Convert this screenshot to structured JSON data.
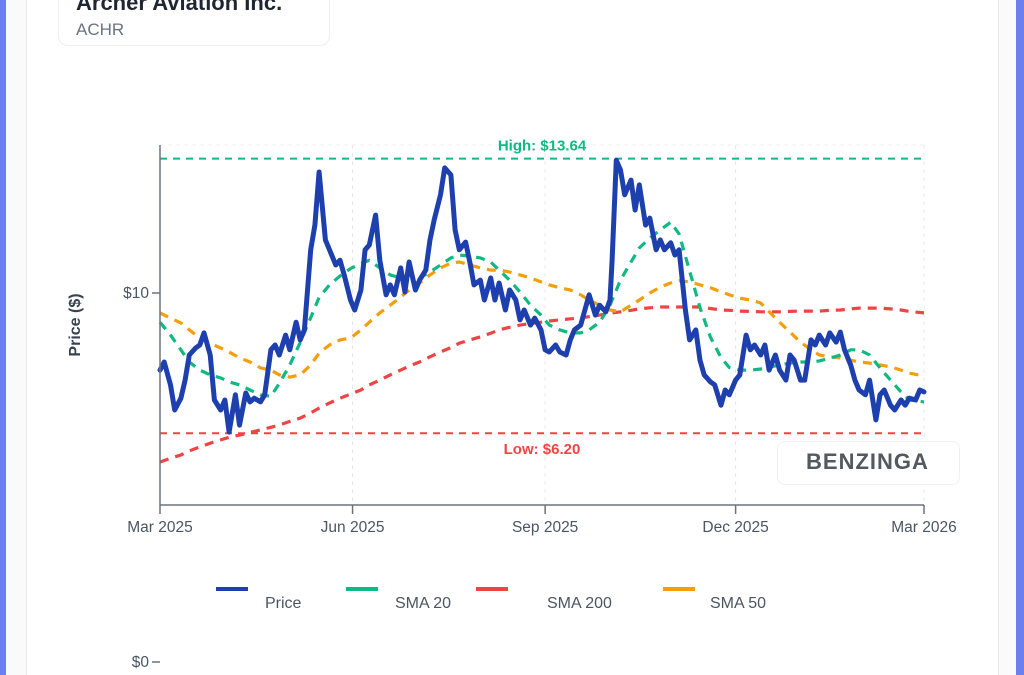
{
  "header": {
    "company_name": "Archer Aviation Inc.",
    "ticker": "ACHR"
  },
  "watermark": "BENZINGA",
  "colors": {
    "price": "#1e40af",
    "sma20": "#10b981",
    "sma200": "#ef4444",
    "sma50": "#f59e0b",
    "frame_accent": "#6b7ff0"
  },
  "chart_data": {
    "type": "line",
    "title": "",
    "xlabel": "",
    "ylabel": "Price ($)",
    "x_range": [
      "2025-03-01",
      "2026-03-01"
    ],
    "ylim": [
      0,
      14.6
    ],
    "x_ticks": [
      {
        "date": "2025-03-01",
        "label": "Mar 2025"
      },
      {
        "date": "2025-06-01",
        "label": "Jun 2025"
      },
      {
        "date": "2025-09-01",
        "label": "Sep 2025"
      },
      {
        "date": "2025-12-01",
        "label": "Dec 2025"
      },
      {
        "date": "2026-03-01",
        "label": "Mar 2026"
      }
    ],
    "y_ticks": [
      {
        "value": 10,
        "label": "$10"
      },
      {
        "value": 0,
        "label": "$0"
      }
    ],
    "grid": "vertical dashed at x ticks",
    "legend_position": "bottom",
    "reference_lines": [
      {
        "name": "high",
        "value": 13.64,
        "label": "High: $13.64",
        "color": "#10b981"
      },
      {
        "name": "low",
        "value": 6.2,
        "label": "Low: $6.20",
        "color": "#ef4444"
      }
    ],
    "legend": [
      "Price",
      "SMA 20",
      "SMA 200",
      "SMA 50"
    ],
    "series": [
      {
        "name": "Price",
        "key": "price",
        "style": "solid",
        "dates": [
          "2025-03-01",
          "2025-03-03",
          "2025-03-06",
          "2025-03-08",
          "2025-03-11",
          "2025-03-13",
          "2025-03-15",
          "2025-03-18",
          "2025-03-20",
          "2025-03-22",
          "2025-03-25",
          "2025-03-27",
          "2025-03-30",
          "2025-04-01",
          "2025-04-03",
          "2025-04-06",
          "2025-04-08",
          "2025-04-11",
          "2025-04-13",
          "2025-04-15",
          "2025-04-18",
          "2025-04-20",
          "2025-04-23",
          "2025-04-25",
          "2025-04-27",
          "2025-04-30",
          "2025-05-02",
          "2025-05-05",
          "2025-05-07",
          "2025-05-09",
          "2025-05-12",
          "2025-05-14",
          "2025-05-16",
          "2025-05-19",
          "2025-05-21",
          "2025-05-24",
          "2025-05-26",
          "2025-05-28",
          "2025-05-31",
          "2025-06-02",
          "2025-06-05",
          "2025-06-07",
          "2025-06-09",
          "2025-06-12",
          "2025-06-14",
          "2025-06-17",
          "2025-06-19",
          "2025-06-21",
          "2025-06-24",
          "2025-06-26",
          "2025-06-28",
          "2025-07-01",
          "2025-07-03",
          "2025-07-06",
          "2025-07-08",
          "2025-07-10",
          "2025-07-13",
          "2025-07-15",
          "2025-07-18",
          "2025-07-20",
          "2025-07-22",
          "2025-07-25",
          "2025-07-27",
          "2025-07-29",
          "2025-08-01",
          "2025-08-03",
          "2025-08-06",
          "2025-08-08",
          "2025-08-10",
          "2025-08-13",
          "2025-08-15",
          "2025-08-18",
          "2025-08-20",
          "2025-08-22",
          "2025-08-25",
          "2025-08-27",
          "2025-08-30",
          "2025-09-01",
          "2025-09-03",
          "2025-09-06",
          "2025-09-08",
          "2025-09-11",
          "2025-09-13",
          "2025-09-15",
          "2025-09-18",
          "2025-09-20",
          "2025-09-22",
          "2025-09-25",
          "2025-09-27",
          "2025-09-30",
          "2025-10-02",
          "2025-10-03",
          "2025-10-05",
          "2025-10-07",
          "2025-10-09",
          "2025-10-12",
          "2025-10-14",
          "2025-10-16",
          "2025-10-19",
          "2025-10-21",
          "2025-10-24",
          "2025-10-26",
          "2025-10-28",
          "2025-10-31",
          "2025-11-02",
          "2025-11-04",
          "2025-11-07",
          "2025-11-09",
          "2025-11-12",
          "2025-11-14",
          "2025-11-16",
          "2025-11-19",
          "2025-11-21",
          "2025-11-24",
          "2025-11-26",
          "2025-11-28",
          "2025-12-01",
          "2025-12-03",
          "2025-12-06",
          "2025-12-08",
          "2025-12-10",
          "2025-12-13",
          "2025-12-15",
          "2025-12-17",
          "2025-12-20",
          "2025-12-22",
          "2025-12-25",
          "2025-12-27",
          "2025-12-29",
          "2026-01-01",
          "2026-01-03",
          "2026-01-06",
          "2026-01-08",
          "2026-01-10",
          "2026-01-13",
          "2026-01-15",
          "2026-01-18",
          "2026-01-20",
          "2026-01-22",
          "2026-01-25",
          "2026-01-27",
          "2026-01-29",
          "2026-02-01",
          "2026-02-03",
          "2026-02-06",
          "2026-02-08",
          "2026-02-10",
          "2026-02-13",
          "2026-02-15",
          "2026-02-18",
          "2026-02-20",
          "2026-02-22",
          "2026-02-25",
          "2026-02-27",
          "2026-03-01"
        ],
        "values": [
          7.91,
          8.13,
          7.51,
          6.83,
          7.15,
          7.64,
          8.32,
          8.51,
          8.59,
          8.92,
          8.32,
          7.1,
          6.83,
          7.1,
          6.23,
          7.24,
          6.42,
          7.29,
          7.05,
          7.15,
          7.05,
          7.24,
          8.46,
          8.59,
          8.32,
          8.86,
          8.46,
          9.21,
          8.73,
          9.0,
          11.17,
          11.84,
          13.28,
          11.44,
          11.17,
          10.76,
          10.89,
          10.49,
          9.81,
          9.54,
          10.08,
          11.17,
          11.3,
          12.11,
          10.89,
          9.95,
          10.22,
          9.95,
          10.68,
          10.03,
          10.84,
          10.08,
          10.35,
          10.62,
          11.44,
          11.98,
          12.66,
          13.39,
          13.2,
          11.71,
          11.17,
          11.38,
          10.84,
          10.22,
          10.35,
          9.81,
          10.41,
          9.81,
          10.27,
          9.54,
          10.08,
          9.81,
          9.27,
          9.54,
          9.13,
          9.32,
          9.0,
          8.46,
          8.4,
          8.59,
          8.4,
          8.32,
          8.73,
          9.0,
          9.13,
          9.54,
          9.95,
          9.4,
          9.67,
          9.49,
          9.81,
          10.89,
          13.6,
          13.33,
          12.66,
          13.06,
          12.25,
          12.93,
          11.84,
          12.03,
          11.17,
          11.44,
          11.17,
          11.36,
          11.03,
          11.17,
          9.54,
          8.73,
          9.0,
          8.18,
          7.78,
          7.59,
          7.51,
          6.96,
          7.37,
          7.24,
          7.64,
          7.78,
          8.86,
          8.46,
          8.59,
          8.32,
          8.59,
          7.91,
          8.32,
          7.91,
          7.64,
          8.32,
          8.18,
          7.64,
          7.64,
          8.73,
          8.59,
          8.86,
          8.59,
          8.92,
          8.67,
          8.94,
          8.46,
          8.05,
          7.64,
          7.37,
          7.24,
          7.64,
          6.56,
          7.24,
          7.37,
          6.96,
          6.83,
          7.1,
          6.96,
          7.15,
          7.1,
          7.37,
          7.32
        ]
      },
      {
        "name": "SMA 20",
        "key": "sma20",
        "style": "dashed",
        "dates": [
          "2025-03-01",
          "2025-03-06",
          "2025-03-11",
          "2025-03-15",
          "2025-03-20",
          "2025-03-25",
          "2025-03-30",
          "2025-04-03",
          "2025-04-08",
          "2025-04-13",
          "2025-04-18",
          "2025-04-23",
          "2025-04-27",
          "2025-05-02",
          "2025-05-07",
          "2025-05-12",
          "2025-05-16",
          "2025-05-21",
          "2025-05-26",
          "2025-05-31",
          "2025-06-05",
          "2025-06-09",
          "2025-06-14",
          "2025-06-19",
          "2025-06-24",
          "2025-06-28",
          "2025-07-03",
          "2025-07-08",
          "2025-07-13",
          "2025-07-18",
          "2025-07-22",
          "2025-07-27",
          "2025-08-01",
          "2025-08-06",
          "2025-08-10",
          "2025-08-15",
          "2025-08-20",
          "2025-08-25",
          "2025-08-30",
          "2025-09-03",
          "2025-09-08",
          "2025-09-13",
          "2025-09-18",
          "2025-09-22",
          "2025-09-27",
          "2025-10-02",
          "2025-10-07",
          "2025-10-12",
          "2025-10-16",
          "2025-10-21",
          "2025-10-26",
          "2025-10-31",
          "2025-11-04",
          "2025-11-09",
          "2025-11-14",
          "2025-11-19",
          "2025-11-24",
          "2025-11-28",
          "2025-12-03",
          "2025-12-08",
          "2025-12-13",
          "2025-12-17",
          "2025-12-22",
          "2025-12-27",
          "2026-01-01",
          "2026-01-06",
          "2026-01-10",
          "2026-01-15",
          "2026-01-20",
          "2026-01-25",
          "2026-01-29",
          "2026-02-03",
          "2026-02-08",
          "2026-02-13",
          "2026-02-18",
          "2026-02-22",
          "2026-03-01"
        ],
        "values": [
          9.21,
          8.86,
          8.46,
          8.13,
          7.91,
          7.78,
          7.7,
          7.59,
          7.51,
          7.37,
          7.24,
          7.2,
          7.55,
          8.05,
          8.66,
          9.33,
          9.88,
          10.22,
          10.46,
          10.66,
          10.8,
          10.89,
          10.68,
          10.49,
          10.41,
          10.49,
          10.41,
          10.57,
          10.76,
          10.95,
          11.03,
          11.0,
          10.95,
          10.84,
          10.62,
          10.35,
          10.03,
          9.67,
          9.4,
          9.13,
          9.0,
          8.92,
          8.92,
          9.0,
          9.21,
          9.67,
          10.35,
          10.84,
          11.22,
          11.49,
          11.71,
          11.92,
          11.6,
          10.6,
          9.6,
          8.8,
          8.25,
          7.98,
          7.91,
          7.91,
          7.94,
          7.99,
          8.05,
          8.1,
          8.13,
          8.13,
          8.16,
          8.23,
          8.32,
          8.46,
          8.46,
          8.32,
          7.97,
          7.64,
          7.32,
          7.1,
          7.05
        ]
      },
      {
        "name": "SMA 200",
        "key": "sma200",
        "style": "dashed",
        "dates": [
          "2025-03-01",
          "2025-03-06",
          "2025-03-11",
          "2025-03-15",
          "2025-03-20",
          "2025-03-25",
          "2025-03-30",
          "2025-04-03",
          "2025-04-08",
          "2025-04-13",
          "2025-04-18",
          "2025-04-23",
          "2025-04-27",
          "2025-05-02",
          "2025-05-07",
          "2025-05-12",
          "2025-05-16",
          "2025-05-21",
          "2025-05-26",
          "2025-05-31",
          "2025-06-05",
          "2025-06-09",
          "2025-06-14",
          "2025-06-19",
          "2025-06-24",
          "2025-06-28",
          "2025-07-03",
          "2025-07-08",
          "2025-07-13",
          "2025-07-18",
          "2025-07-22",
          "2025-07-27",
          "2025-08-01",
          "2025-08-06",
          "2025-08-10",
          "2025-08-15",
          "2025-08-20",
          "2025-08-25",
          "2025-08-30",
          "2025-09-03",
          "2025-09-08",
          "2025-09-13",
          "2025-09-18",
          "2025-09-22",
          "2025-09-27",
          "2025-10-02",
          "2025-10-07",
          "2025-10-12",
          "2025-10-16",
          "2025-10-21",
          "2025-10-26",
          "2025-10-31",
          "2025-11-04",
          "2025-11-09",
          "2025-11-14",
          "2025-11-19",
          "2025-11-24",
          "2025-11-28",
          "2025-12-03",
          "2025-12-08",
          "2025-12-13",
          "2025-12-17",
          "2025-12-22",
          "2025-12-27",
          "2026-01-01",
          "2026-01-06",
          "2026-01-10",
          "2026-01-15",
          "2026-01-20",
          "2026-01-25",
          "2026-01-29",
          "2026-02-03",
          "2026-02-08",
          "2026-02-13",
          "2026-02-18",
          "2026-02-22",
          "2026-03-01"
        ],
        "values": [
          5.42,
          5.52,
          5.61,
          5.72,
          5.83,
          5.93,
          6.02,
          6.09,
          6.15,
          6.22,
          6.29,
          6.36,
          6.42,
          6.52,
          6.61,
          6.75,
          6.88,
          7.02,
          7.15,
          7.26,
          7.37,
          7.51,
          7.64,
          7.78,
          7.91,
          8.02,
          8.13,
          8.27,
          8.4,
          8.52,
          8.64,
          8.73,
          8.81,
          8.91,
          9.0,
          9.07,
          9.13,
          9.17,
          9.21,
          9.24,
          9.27,
          9.3,
          9.32,
          9.36,
          9.4,
          9.45,
          9.49,
          9.53,
          9.57,
          9.6,
          9.62,
          9.62,
          9.62,
          9.62,
          9.62,
          9.58,
          9.54,
          9.53,
          9.51,
          9.5,
          9.49,
          9.49,
          9.49,
          9.5,
          9.51,
          9.51,
          9.51,
          9.53,
          9.54,
          9.57,
          9.59,
          9.59,
          9.59,
          9.57,
          9.54,
          9.5,
          9.46
        ]
      },
      {
        "name": "SMA 50",
        "key": "sma50",
        "style": "dashed",
        "dates": [
          "2025-03-01",
          "2025-03-06",
          "2025-03-11",
          "2025-03-15",
          "2025-03-20",
          "2025-03-25",
          "2025-03-30",
          "2025-04-03",
          "2025-04-08",
          "2025-04-13",
          "2025-04-18",
          "2025-04-23",
          "2025-04-27",
          "2025-05-02",
          "2025-05-07",
          "2025-05-12",
          "2025-05-16",
          "2025-05-21",
          "2025-05-26",
          "2025-05-31",
          "2025-06-05",
          "2025-06-09",
          "2025-06-14",
          "2025-06-19",
          "2025-06-24",
          "2025-06-28",
          "2025-07-03",
          "2025-07-08",
          "2025-07-13",
          "2025-07-18",
          "2025-07-22",
          "2025-07-27",
          "2025-08-01",
          "2025-08-06",
          "2025-08-10",
          "2025-08-15",
          "2025-08-20",
          "2025-08-25",
          "2025-08-30",
          "2025-09-03",
          "2025-09-08",
          "2025-09-13",
          "2025-09-18",
          "2025-09-22",
          "2025-09-27",
          "2025-10-02",
          "2025-10-07",
          "2025-10-12",
          "2025-10-16",
          "2025-10-21",
          "2025-10-26",
          "2025-10-31",
          "2025-11-04",
          "2025-11-09",
          "2025-11-14",
          "2025-11-19",
          "2025-11-24",
          "2025-11-28",
          "2025-12-03",
          "2025-12-08",
          "2025-12-13",
          "2025-12-17",
          "2025-12-22",
          "2025-12-27",
          "2026-01-01",
          "2026-01-06",
          "2026-01-10",
          "2026-01-15",
          "2026-01-20",
          "2026-01-25",
          "2026-01-29",
          "2026-02-03",
          "2026-02-08",
          "2026-02-13",
          "2026-02-18",
          "2026-02-22",
          "2026-03-01"
        ],
        "values": [
          9.46,
          9.32,
          9.19,
          9.0,
          8.78,
          8.64,
          8.51,
          8.4,
          8.24,
          8.13,
          7.97,
          7.91,
          7.78,
          7.72,
          7.78,
          8.05,
          8.37,
          8.59,
          8.73,
          8.78,
          9.0,
          9.21,
          9.46,
          9.67,
          9.89,
          10.08,
          10.27,
          10.49,
          10.68,
          10.81,
          10.84,
          10.76,
          10.68,
          10.62,
          10.62,
          10.57,
          10.49,
          10.41,
          10.3,
          10.22,
          10.14,
          10.08,
          9.95,
          9.81,
          9.67,
          9.54,
          9.49,
          9.67,
          9.81,
          10.0,
          10.16,
          10.27,
          10.33,
          10.3,
          10.22,
          10.14,
          10.03,
          9.95,
          9.86,
          9.81,
          9.73,
          9.49,
          9.21,
          8.94,
          8.67,
          8.46,
          8.32,
          8.27,
          8.24,
          8.18,
          8.13,
          8.1,
          8.05,
          8.0,
          7.91,
          7.83,
          7.75
        ]
      }
    ]
  }
}
